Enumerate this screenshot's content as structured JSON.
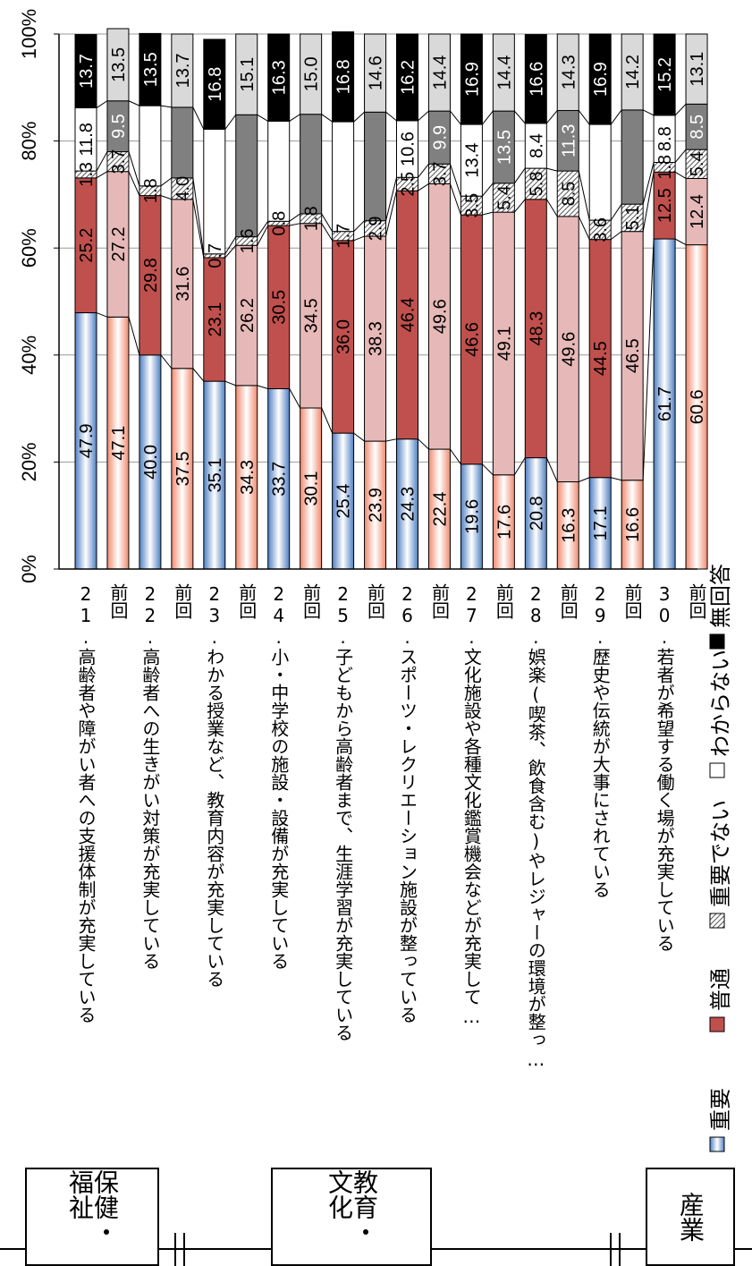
{
  "chart_data": {
    "type": "bar",
    "stacked": true,
    "orientation": "horizontal-rotated",
    "ylim": [
      0,
      100
    ],
    "y_ticks": [
      "0%",
      "20%",
      "40%",
      "60%",
      "80%",
      "100%"
    ],
    "categories": [
      "21.高齢者や障がい者への支援体制が充実している",
      "前回",
      "22.高齢者への生きがい対策が充実している",
      "前回",
      "23.わかる授業など、教育内容が充実している",
      "前回",
      "24.小・中学校の施設・設備が充実している",
      "前回",
      "25.子どもから高齢者まで、生涯学習が充実している",
      "前回",
      "26.スポーツ・レクリエーション施設が整っている",
      "前回",
      "27.文化施設や各種文化鑑賞機会などが充実して…",
      "前回",
      "28.娯楽(喫茶、飲食含む)やレジャーの環境が整っ…",
      "前回",
      "29.歴史や伝統が大事にされている",
      "前回",
      "30.若者が希望する働く場が充実している",
      "前回"
    ],
    "series": [
      {
        "name": "重要",
        "values": [
          47.9,
          47.1,
          40.0,
          37.5,
          35.1,
          34.3,
          33.7,
          30.1,
          25.4,
          23.9,
          24.3,
          22.4,
          19.6,
          17.6,
          20.8,
          16.3,
          17.1,
          16.6,
          61.7,
          60.6
        ]
      },
      {
        "name": "普通",
        "values": [
          25.2,
          27.2,
          29.8,
          31.6,
          23.1,
          26.2,
          30.5,
          34.5,
          36.0,
          38.3,
          46.4,
          49.6,
          46.6,
          49.1,
          48.3,
          49.6,
          44.5,
          46.5,
          12.5,
          12.4
        ]
      },
      {
        "name": "重要でない",
        "values": [
          1.3,
          3.7,
          1.8,
          4.0,
          0.7,
          1.6,
          0.8,
          1.8,
          1.7,
          2.9,
          2.5,
          3.7,
          3.5,
          5.4,
          5.8,
          8.5,
          3.6,
          5.1,
          1.8,
          5.4
        ]
      },
      {
        "name": "わからない",
        "values": [
          11.8,
          9.5,
          15.0,
          13.2,
          23.3,
          22.8,
          18.7,
          18.6,
          20.5,
          20.3,
          10.6,
          9.9,
          13.4,
          13.5,
          8.4,
          11.3,
          17.9,
          17.6,
          8.8,
          8.5
        ]
      },
      {
        "name": "無回答",
        "values": [
          13.7,
          13.5,
          13.5,
          13.7,
          16.8,
          15.1,
          16.3,
          15.0,
          16.8,
          14.6,
          16.2,
          14.4,
          16.9,
          14.4,
          16.6,
          14.3,
          16.9,
          14.2,
          15.2,
          13.1
        ]
      }
    ],
    "data_labels": [
      [
        "47.9",
        "25.2",
        "1.3",
        "11.8",
        "13.7"
      ],
      [
        "47.1",
        "27.2",
        "3.7",
        "9.5",
        "13.5"
      ],
      [
        "40.0",
        "29.8",
        "1.8",
        "",
        "13.5"
      ],
      [
        "37.5",
        "31.6",
        "4.0",
        "",
        "13.7"
      ],
      [
        "35.1",
        "23.1",
        "0.7",
        "",
        "16.8"
      ],
      [
        "34.3",
        "26.2",
        "1.6",
        "",
        "15.1"
      ],
      [
        "33.7",
        "30.5",
        "0.8",
        "",
        "16.3"
      ],
      [
        "30.1",
        "34.5",
        "1.8",
        "",
        "15.0"
      ],
      [
        "25.4",
        "36.0",
        "1.7",
        "",
        "16.8"
      ],
      [
        "23.9",
        "38.3",
        "2.9",
        "",
        "14.6"
      ],
      [
        "24.3",
        "46.4",
        "2.5",
        "10.6",
        "16.2"
      ],
      [
        "22.4",
        "49.6",
        "3.7",
        "9.9",
        "14.4"
      ],
      [
        "19.6",
        "46.6",
        "3.5",
        "13.4",
        "16.9"
      ],
      [
        "17.6",
        "49.1",
        "5.4",
        "13.5",
        "14.4"
      ],
      [
        "20.8",
        "48.3",
        "5.8",
        "8.4",
        "16.6"
      ],
      [
        "16.3",
        "49.6",
        "8.5",
        "11.3",
        "14.3"
      ],
      [
        "17.1",
        "44.5",
        "3.6",
        "",
        "16.9"
      ],
      [
        "16.6",
        "46.5",
        "5.1",
        "",
        "14.2"
      ],
      [
        "61.7",
        "12.5",
        "1.8",
        "8.8",
        "15.2"
      ],
      [
        "60.6",
        "12.4",
        "5.4",
        "8.5",
        "13.1"
      ]
    ],
    "legend_position": "bottom",
    "grid": true
  },
  "legend": [
    {
      "label": "重要",
      "style": "blue-gradient"
    },
    {
      "label": "普通",
      "style": "red"
    },
    {
      "label": "重要でない",
      "style": "hatch"
    },
    {
      "label": "わからない",
      "style": "white"
    },
    {
      "label": "無回答",
      "style": "black"
    }
  ],
  "groups": [
    {
      "label": "保健・福祉"
    },
    {
      "label": "教育・文化"
    },
    {
      "label": "産業"
    }
  ],
  "colors": {
    "important": "#8fb4e3",
    "important_prev": "#f4b6a6",
    "normal": "#c0504d",
    "normal_prev": "#e6b9b8",
    "unimportant": "#d9d9d9",
    "unknown": "#ffffff",
    "unknown_prev": "#808080",
    "noanswer": "#000000",
    "noanswer_prev": "#d9d9d9"
  }
}
